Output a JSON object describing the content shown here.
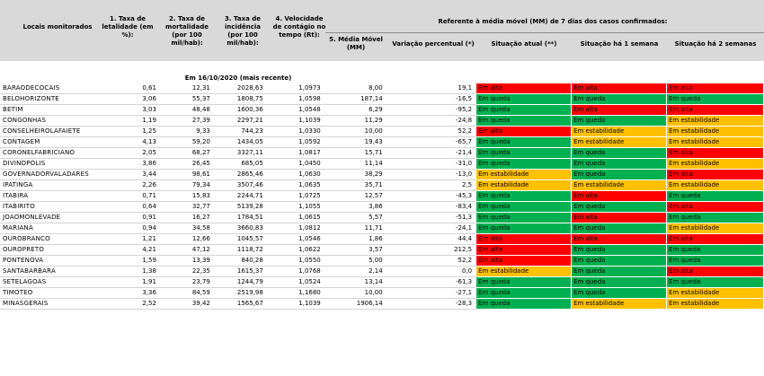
{
  "headers": {
    "locais": "Locais monitorados",
    "letalidade": "1. Taxa de letalidade (em %):",
    "mortalidade": "2. Taxa de mortalidade (por 100 mil/hab):",
    "incidencia": "3. Taxa de incidência (por 100 mil/hab):",
    "velocidade": "4. Velocidade de contágio no tempo (Rt):",
    "referente": "Referente à média móvel (MM) de 7 dias  dos casos confirmados:",
    "media_movel": "5. Média Móvel (MM)",
    "variacao": "Variação percentual (*)",
    "situacao_atual": "Situação atual (**)",
    "situacao_1sem": "Situação há 1 semana",
    "situacao_2sem": "Situação há 2 semanas"
  },
  "date_label": "Em 16/10/2020 (mais recente)",
  "status_colors": {
    "Em alta": "#ff0000",
    "Em queda": "#00b050",
    "Em estabilidade": "#ffc000"
  },
  "rows": [
    {
      "local": "BARAODECOCAIS",
      "letalidade": "0,61",
      "mortalidade": "12,31",
      "incidencia": "2028,63",
      "rt": "1,0973",
      "mm": "8,00",
      "variacao": "19,1",
      "atual": "Em alta",
      "sem1": "Em alta",
      "sem2": "Em alta"
    },
    {
      "local": "BELOHORIZONTE",
      "letalidade": "3,06",
      "mortalidade": "55,37",
      "incidencia": "1808,75",
      "rt": "1,0598",
      "mm": "187,14",
      "variacao": "-16,5",
      "atual": "Em queda",
      "sem1": "Em queda",
      "sem2": "Em queda"
    },
    {
      "local": "BETIM",
      "letalidade": "3,03",
      "mortalidade": "48,48",
      "incidencia": "1600,36",
      "rt": "1,0548",
      "mm": "6,29",
      "variacao": "-95,2",
      "atual": "Em queda",
      "sem1": "Em alta",
      "sem2": "Em alta"
    },
    {
      "local": "CONGONHAS",
      "letalidade": "1,19",
      "mortalidade": "27,39",
      "incidencia": "2297,21",
      "rt": "1,1039",
      "mm": "11,29",
      "variacao": "-24,8",
      "atual": "Em queda",
      "sem1": "Em queda",
      "sem2": "Em estabilidade"
    },
    {
      "local": "CONSELHEIROLAFAIETE",
      "letalidade": "1,25",
      "mortalidade": "9,33",
      "incidencia": "744,23",
      "rt": "1,0330",
      "mm": "10,00",
      "variacao": "52,2",
      "atual": "Em alta",
      "sem1": "Em estabilidade",
      "sem2": "Em estabilidade"
    },
    {
      "local": "CONTAGEM",
      "letalidade": "4,13",
      "mortalidade": "59,20",
      "incidencia": "1434,05",
      "rt": "1,0592",
      "mm": "19,43",
      "variacao": "-65,7",
      "atual": "Em queda",
      "sem1": "Em estabilidade",
      "sem2": "Em estabilidade"
    },
    {
      "local": "CORONELFABRICIANO",
      "letalidade": "2,05",
      "mortalidade": "68,27",
      "incidencia": "3327,11",
      "rt": "1,0817",
      "mm": "15,71",
      "variacao": "-21,4",
      "atual": "Em queda",
      "sem1": "Em queda",
      "sem2": "Em alta"
    },
    {
      "local": "DIVINOPOLIS",
      "letalidade": "3,86",
      "mortalidade": "26,45",
      "incidencia": "685,05",
      "rt": "1,0450",
      "mm": "11,14",
      "variacao": "-31,0",
      "atual": "Em queda",
      "sem1": "Em queda",
      "sem2": "Em estabilidade"
    },
    {
      "local": "GOVERNADORVALADARES",
      "letalidade": "3,44",
      "mortalidade": "98,61",
      "incidencia": "2865,46",
      "rt": "1,0630",
      "mm": "38,29",
      "variacao": "-13,0",
      "atual": "Em estabilidade",
      "sem1": "Em queda",
      "sem2": "Em alta"
    },
    {
      "local": "IPATINGA",
      "letalidade": "2,26",
      "mortalidade": "79,34",
      "incidencia": "3507,46",
      "rt": "1,0635",
      "mm": "35,71",
      "variacao": "2,5",
      "atual": "Em estabilidade",
      "sem1": "Em estabilidade",
      "sem2": "Em estabilidade"
    },
    {
      "local": "ITABIRA",
      "letalidade": "0,71",
      "mortalidade": "15,83",
      "incidencia": "2244,71",
      "rt": "1,0725",
      "mm": "12,57",
      "variacao": "-45,3",
      "atual": "Em queda",
      "sem1": "Em alta",
      "sem2": "Em queda"
    },
    {
      "local": "ITABIRITO",
      "letalidade": "0,64",
      "mortalidade": "32,77",
      "incidencia": "5139,28",
      "rt": "1,1055",
      "mm": "3,86",
      "variacao": "-83,4",
      "atual": "Em queda",
      "sem1": "Em queda",
      "sem2": "Em alta"
    },
    {
      "local": "JOAOMONLEVADE",
      "letalidade": "0,91",
      "mortalidade": "16,27",
      "incidencia": "1784,51",
      "rt": "1,0615",
      "mm": "5,57",
      "variacao": "-51,3",
      "atual": "Em queda",
      "sem1": "Em alta",
      "sem2": "Em queda"
    },
    {
      "local": "MARIANA",
      "letalidade": "0,94",
      "mortalidade": "34,58",
      "incidencia": "3660,83",
      "rt": "1,0812",
      "mm": "11,71",
      "variacao": "-24,1",
      "atual": "Em queda",
      "sem1": "Em queda",
      "sem2": "Em estabilidade"
    },
    {
      "local": "OUROBRANCO",
      "letalidade": "1,21",
      "mortalidade": "12,66",
      "incidencia": "1045,57",
      "rt": "1,0546",
      "mm": "1,86",
      "variacao": "44,4",
      "atual": "Em alta",
      "sem1": "Em alta",
      "sem2": "Em alta"
    },
    {
      "local": "OUROPRETO",
      "letalidade": "4,21",
      "mortalidade": "47,12",
      "incidencia": "1118,72",
      "rt": "1,0622",
      "mm": "3,57",
      "variacao": "212,5",
      "atual": "Em alta",
      "sem1": "Em queda",
      "sem2": "Em queda"
    },
    {
      "local": "PONTENOVA",
      "letalidade": "1,59",
      "mortalidade": "13,39",
      "incidencia": "840,28",
      "rt": "1,0550",
      "mm": "5,00",
      "variacao": "52,2",
      "atual": "Em alta",
      "sem1": "Em queda",
      "sem2": "Em queda"
    },
    {
      "local": "SANTABARBARA",
      "letalidade": "1,38",
      "mortalidade": "22,35",
      "incidencia": "1615,37",
      "rt": "1,0768",
      "mm": "2,14",
      "variacao": "0,0",
      "atual": "Em estabilidade",
      "sem1": "Em queda",
      "sem2": "Em alta"
    },
    {
      "local": "SETELAGOAS",
      "letalidade": "1,91",
      "mortalidade": "23,79",
      "incidencia": "1244,79",
      "rt": "1,0524",
      "mm": "13,14",
      "variacao": "-61,3",
      "atual": "Em queda",
      "sem1": "Em queda",
      "sem2": "Em queda"
    },
    {
      "local": "TIMOTEO",
      "letalidade": "3,36",
      "mortalidade": "84,59",
      "incidencia": "2519,98",
      "rt": "1,1680",
      "mm": "10,00",
      "variacao": "-27,1",
      "atual": "Em queda",
      "sem1": "Em queda",
      "sem2": "Em estabilidade"
    },
    {
      "local": "MINASGERAIS",
      "letalidade": "2,52",
      "mortalidade": "39,42",
      "incidencia": "1565,67",
      "rt": "1,1039",
      "mm": "1906,14",
      "variacao": "-28,3",
      "atual": "Em queda",
      "sem1": "Em estabilidade",
      "sem2": "Em estabilidade"
    }
  ]
}
